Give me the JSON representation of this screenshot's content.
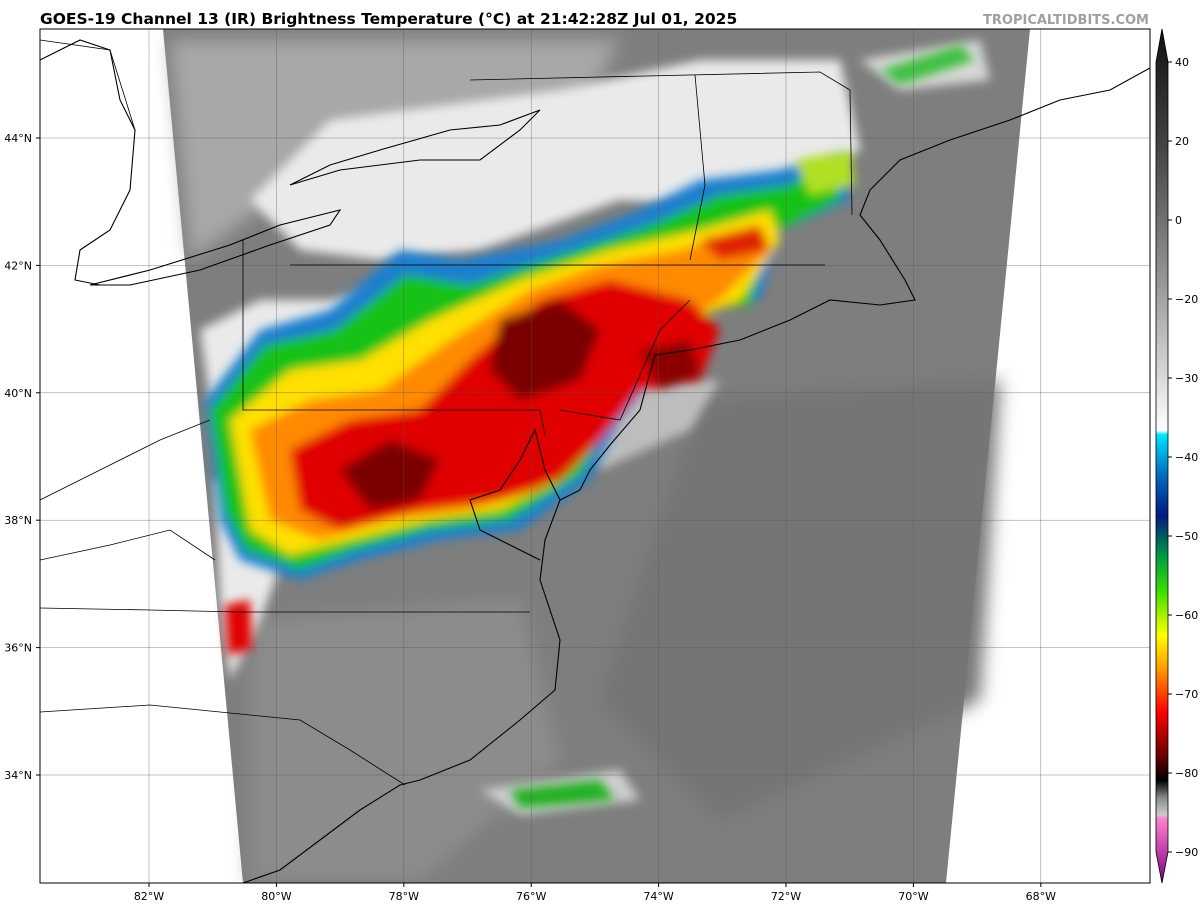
{
  "header": {
    "title": "GOES-19 Channel 13 (IR) Brightness Temperature (°C) at 21:42:28Z Jul 01, 2025",
    "watermark": "TROPICALTIDBITS.COM"
  },
  "map": {
    "latitude_labels": [
      "44°N",
      "42°N",
      "40°N",
      "38°N",
      "36°N",
      "34°N"
    ],
    "longitude_labels": [
      "82°W",
      "80°W",
      "78°W",
      "76°W",
      "74°W",
      "72°W",
      "70°W",
      "68°W"
    ]
  },
  "colorbar": {
    "tick_labels": [
      "40",
      "20",
      "0",
      "−20",
      "−30",
      "−40",
      "−50",
      "−60",
      "−70",
      "−80",
      "−90"
    ]
  }
}
